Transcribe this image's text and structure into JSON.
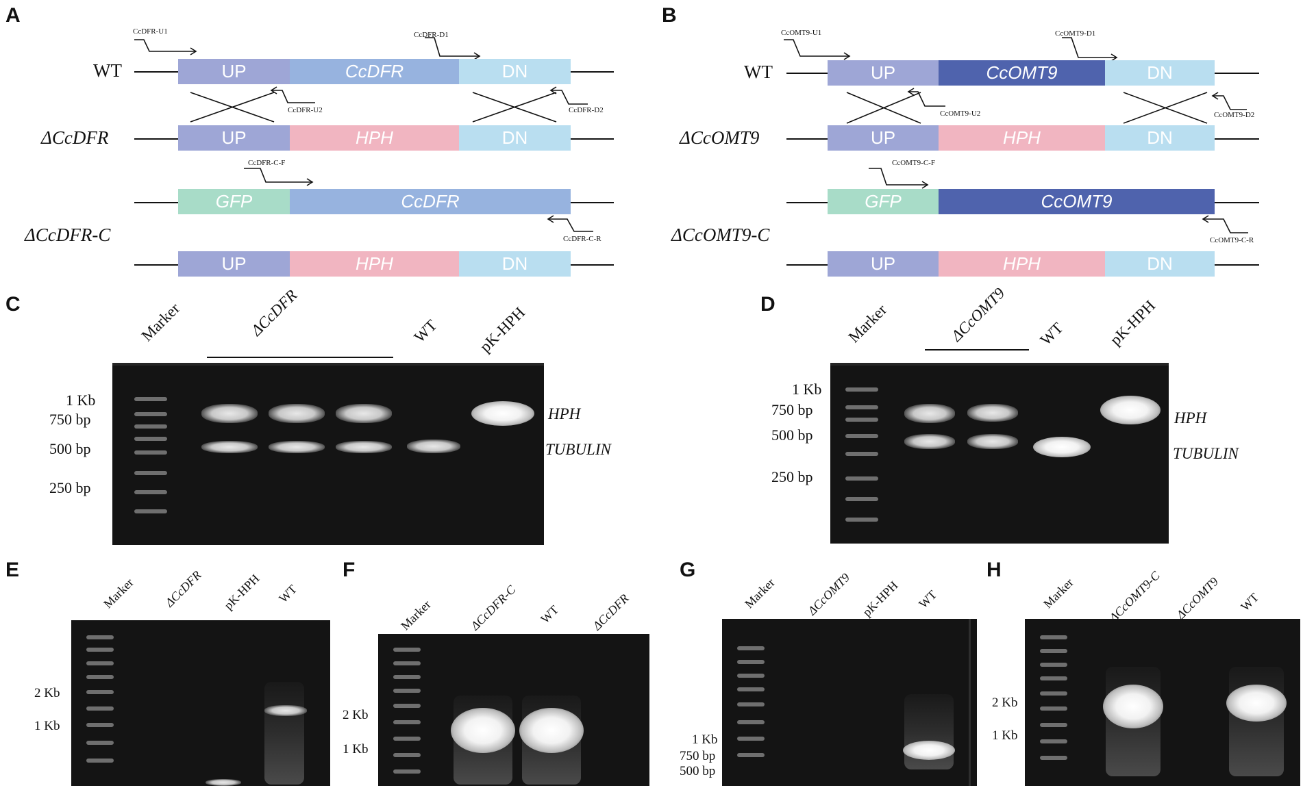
{
  "panels": {
    "a": "A",
    "b": "B",
    "c": "C",
    "d": "D",
    "e": "E",
    "f": "F",
    "g": "G",
    "h": "H"
  },
  "a": {
    "strains": {
      "wt": "WT",
      "ko": "ΔCcDFR",
      "comp": "ΔCcDFR-C"
    },
    "boxes": {
      "up": "UP",
      "gene": "CcDFR",
      "dn": "DN",
      "hph": "HPH",
      "gfp": "GFP"
    },
    "primers": {
      "u1": "CcDFR-U1",
      "d1": "CcDFR-D1",
      "u2": "CcDFR-U2",
      "d2": "CcDFR-D2",
      "cf": "CcDFR-C-F",
      "cr": "CcDFR-C-R"
    }
  },
  "b": {
    "strains": {
      "wt": "WT",
      "ko": "ΔCcOMT9",
      "comp": "ΔCcOMT9-C"
    },
    "boxes": {
      "up": "UP",
      "gene": "CcOMT9",
      "dn": "DN",
      "hph": "HPH",
      "gfp": "GFP"
    },
    "primers": {
      "u1": "CcOMT9-U1",
      "d1": "CcOMT9-D1",
      "u2": "CcOMT9-U2",
      "d2": "CcOMT9-D2",
      "cf": "CcOMT9-C-F",
      "cr": "CcOMT9-C-R"
    }
  },
  "c": {
    "lanes": {
      "marker": "Marker",
      "ko": "ΔCcDFR",
      "wt": "WT",
      "pk": "pK-HPH"
    },
    "sizes": {
      "s1kb": "1 Kb",
      "s750": "750 bp",
      "s500": "500 bp",
      "s250": "250 bp"
    },
    "bands": {
      "hph": "HPH",
      "tub": "TUBULIN"
    }
  },
  "d": {
    "lanes": {
      "marker": "Marker",
      "ko": "ΔCcOMT9",
      "wt": "WT",
      "pk": "pK-HPH"
    },
    "sizes": {
      "s1kb": "1 Kb",
      "s750": "750 bp",
      "s500": "500 bp",
      "s250": "250 bp"
    },
    "bands": {
      "hph": "HPH",
      "tub": "TUBULIN"
    }
  },
  "e": {
    "lanes": {
      "marker": "Marker",
      "ko": "ΔCcDFR",
      "pk": "pK-HPH",
      "wt": "WT"
    },
    "sizes": {
      "s2kb": "2 Kb",
      "s1kb": "1 Kb"
    }
  },
  "f": {
    "lanes": {
      "marker": "Marker",
      "comp": "ΔCcDFR-C",
      "wt": "WT",
      "ko": "ΔCcDFR"
    },
    "sizes": {
      "s2kb": "2 Kb",
      "s1kb": "1 Kb"
    }
  },
  "g": {
    "lanes": {
      "marker": "Marker",
      "ko": "ΔCcOMT9",
      "pk": "pK-HPH",
      "wt": "WT"
    },
    "sizes": {
      "s1kb": "1 Kb",
      "s750": "750 bp",
      "s500": "500 bp"
    }
  },
  "h": {
    "lanes": {
      "marker": "Marker",
      "comp": "ΔCcOMT9-C",
      "ko": "ΔCcOMT9",
      "wt": "WT"
    },
    "sizes": {
      "s2kb": "2 Kb",
      "s1kb": "1 Kb"
    }
  }
}
